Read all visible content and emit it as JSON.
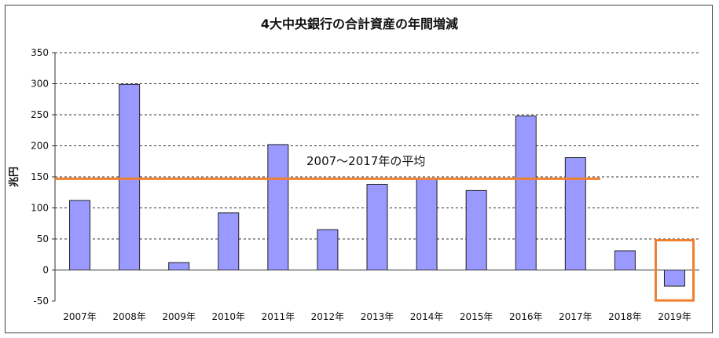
{
  "chart_data": {
    "type": "bar",
    "title": "4大中央銀行の合計資産の年間増減",
    "ylabel": "兆円",
    "xlabel": "",
    "ylim": [
      -50,
      350
    ],
    "yticks": [
      350,
      300,
      250,
      200,
      150,
      100,
      50,
      0,
      -50
    ],
    "grid": true,
    "categories": [
      "2007年",
      "2008年",
      "2009年",
      "2010年",
      "2011年",
      "2012年",
      "2013年",
      "2014年",
      "2015年",
      "2016年",
      "2017年",
      "2018年",
      "2019年"
    ],
    "values": [
      112,
      299,
      12,
      92,
      202,
      65,
      138,
      148,
      128,
      248,
      181,
      31,
      -26
    ],
    "bar_color": "#9999ff",
    "reference_line": {
      "label": "2007～2017年の平均",
      "value": 147,
      "color": "#f08030"
    },
    "highlight": {
      "category": "2019年",
      "color": "#f08030"
    }
  }
}
